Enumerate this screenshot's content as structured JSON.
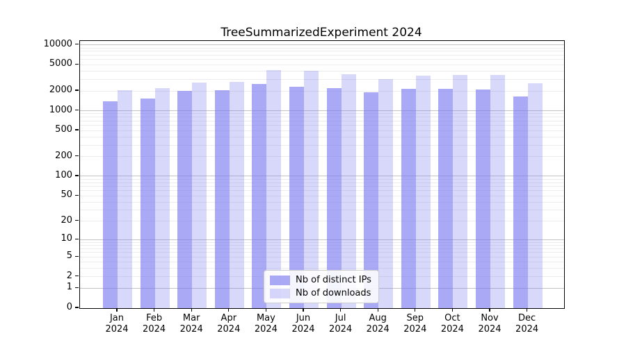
{
  "chart_data": {
    "type": "bar",
    "title": "TreeSummarizedExperiment 2024",
    "categories": [
      "Jan",
      "Feb",
      "Mar",
      "Apr",
      "May",
      "Jun",
      "Jul",
      "Aug",
      "Sep",
      "Oct",
      "Nov",
      "Dec"
    ],
    "category_year": "2024",
    "series": [
      {
        "name": "Nb of distinct IPs",
        "color": "rgba(120,120,240,0.64)",
        "values": [
          1400,
          1520,
          2000,
          2060,
          2570,
          2320,
          2220,
          1910,
          2130,
          2170,
          2120,
          1650
        ]
      },
      {
        "name": "Nb of downloads",
        "color": "rgba(120,120,240,0.29)",
        "values": [
          2050,
          2180,
          2680,
          2740,
          4180,
          4050,
          3550,
          3030,
          3390,
          3470,
          3520,
          2590
        ]
      }
    ],
    "xlabel": "",
    "ylabel": "",
    "y_scale": "log10(value+1)",
    "ylim": [
      0,
      11500
    ],
    "y_ticks": [
      10000,
      5000,
      2000,
      1000,
      500,
      200,
      100,
      50,
      20,
      10,
      5,
      2,
      1,
      0
    ],
    "grid": {
      "major_lines": [
        1,
        10,
        100,
        1000,
        10000
      ],
      "minor_lines_per_decade": "2-9"
    },
    "legend_position": "lower center",
    "background_color": "#ffffff",
    "text_color": "#000000"
  }
}
